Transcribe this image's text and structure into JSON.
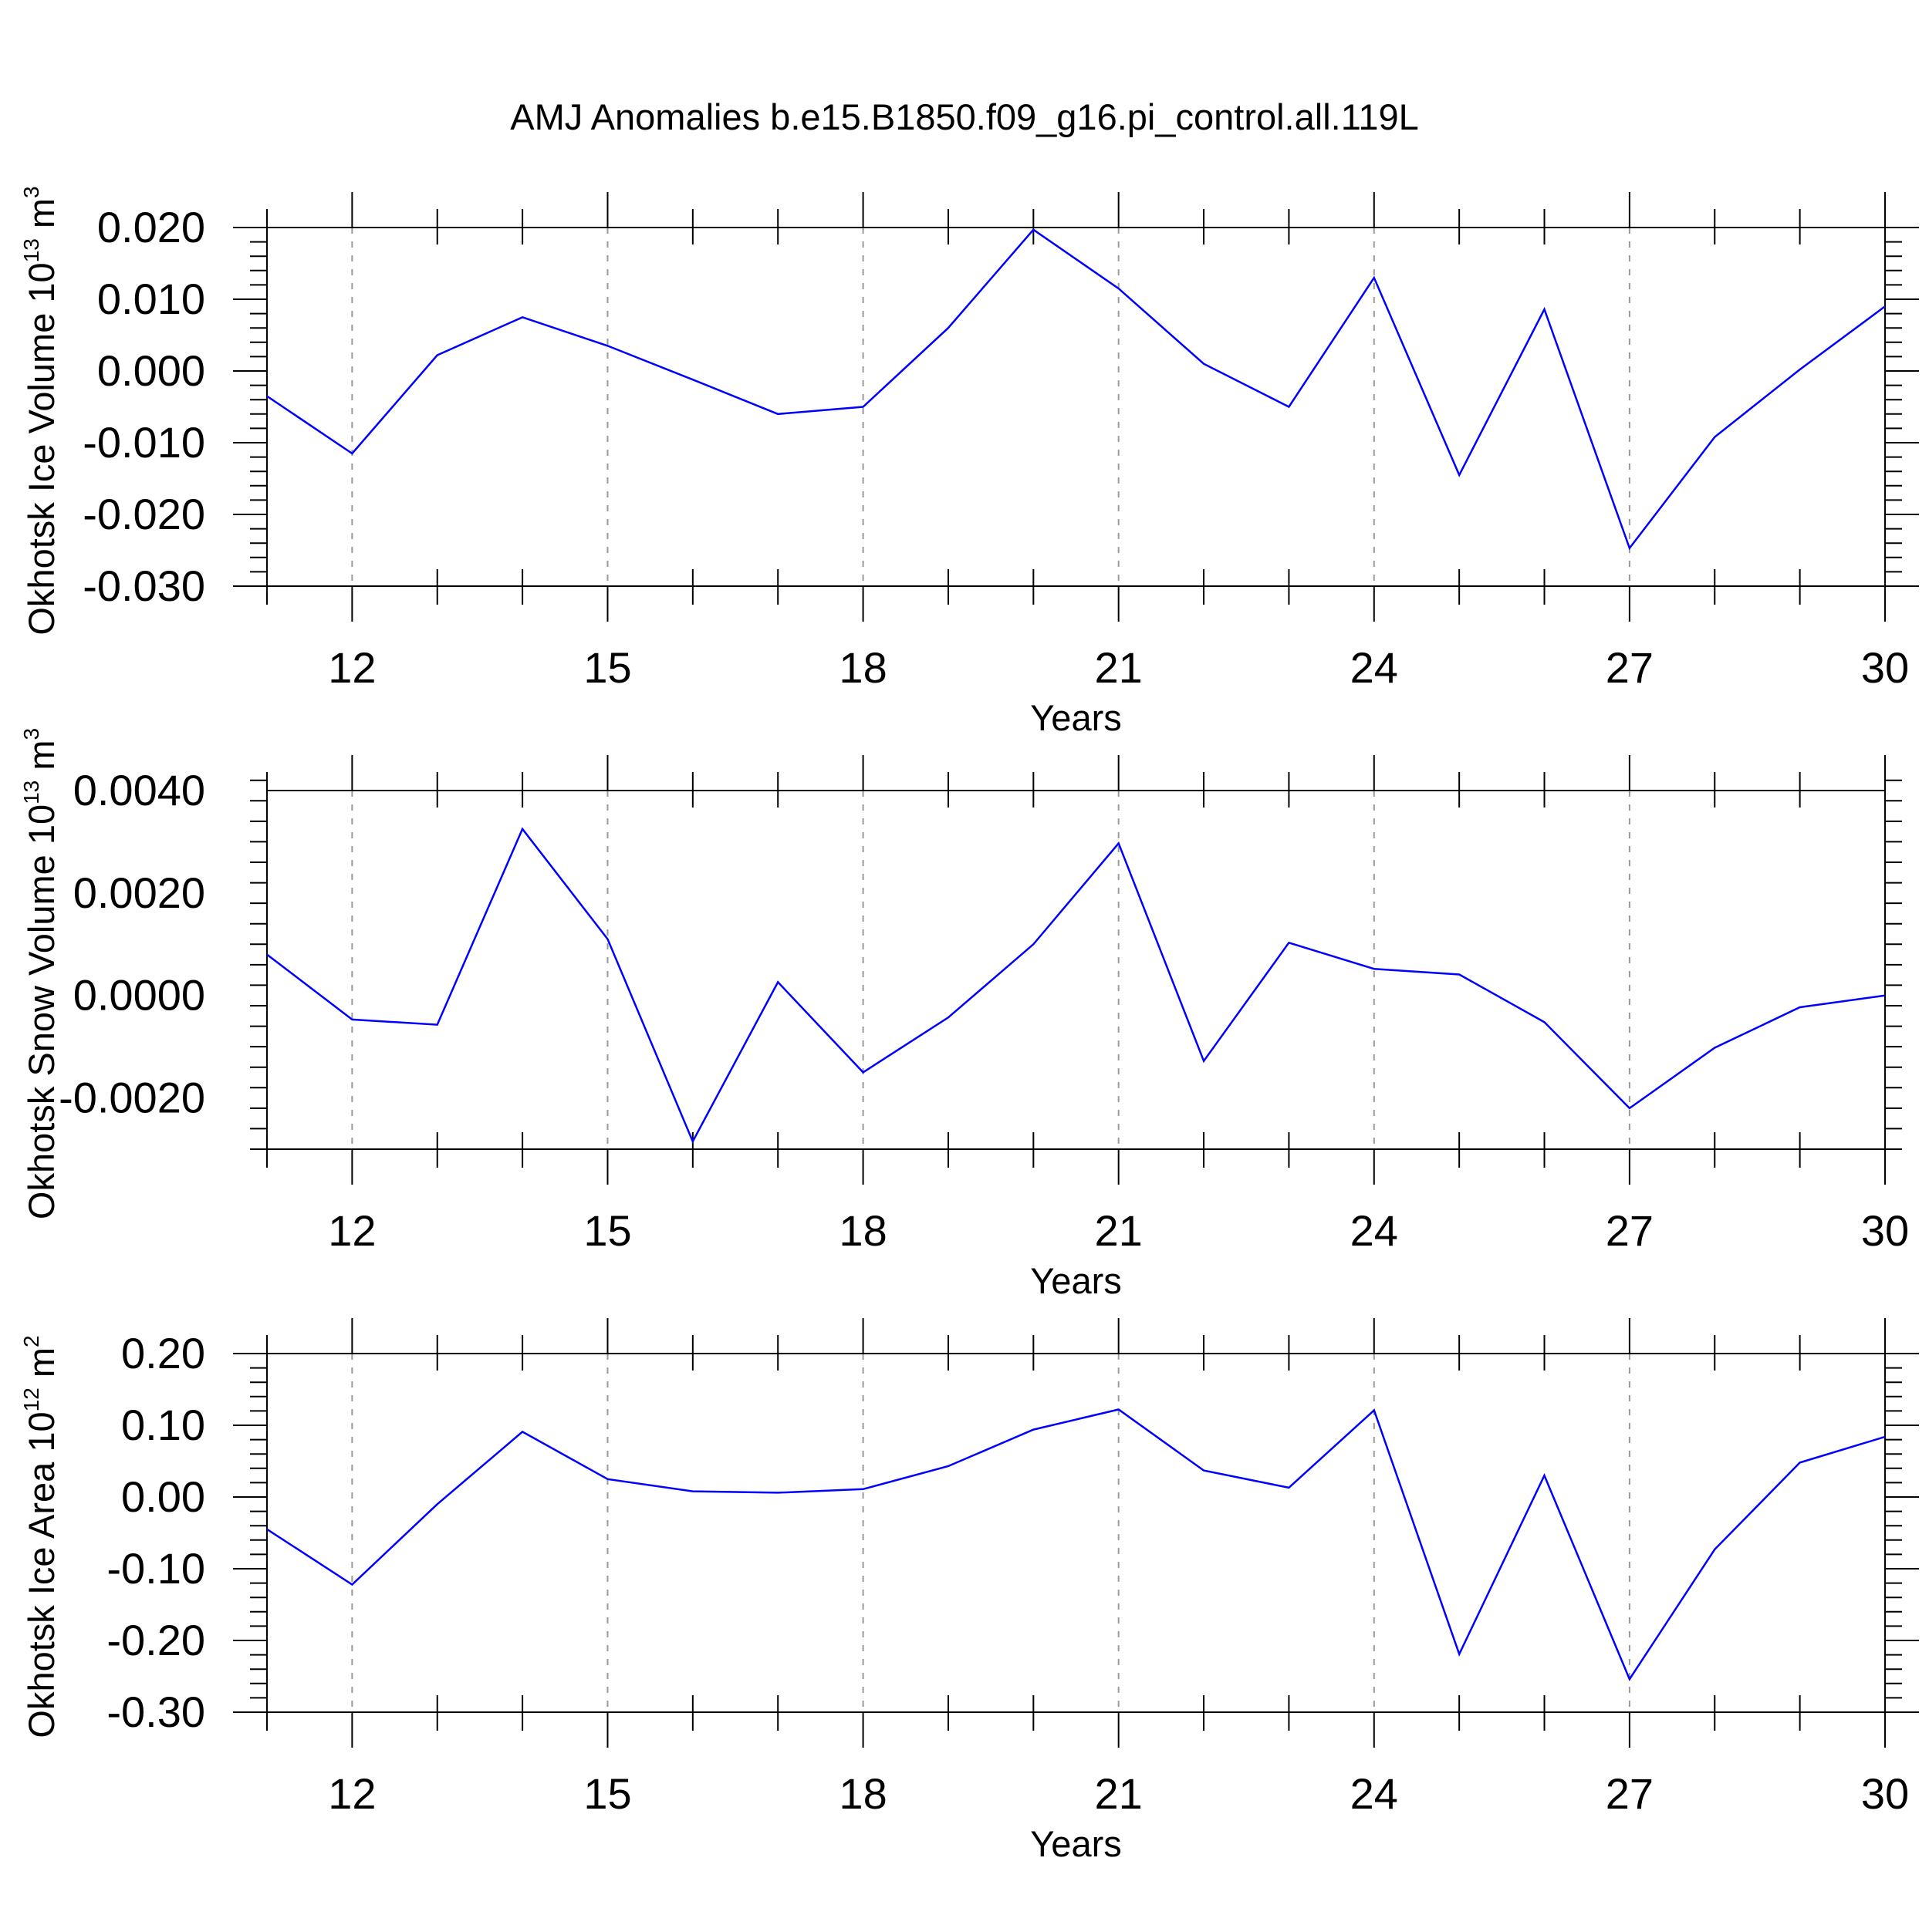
{
  "chart_data": {
    "type": "line",
    "title": "AMJ Anomalies b.e15.B1850.f09_g16.pi_control.all.119L",
    "line_color": "#0000ff",
    "grid": "vertical dashed at major x ticks",
    "x": [
      11,
      12,
      13,
      14,
      15,
      16,
      17,
      18,
      19,
      20,
      21,
      22,
      23,
      24,
      25,
      26,
      27,
      28,
      29,
      30
    ],
    "xlim": [
      11,
      30
    ],
    "x_ticks": [
      "12",
      "15",
      "18",
      "21",
      "24",
      "27",
      "30"
    ],
    "panels": [
      {
        "ylabel_main": "Okhotsk Ice Volume 10",
        "ylabel_exp": "13",
        "ylabel_unit": "m",
        "ylabel_unit_exp": "3",
        "xlabel": "Years",
        "ylim": [
          -0.03,
          0.02
        ],
        "y_ticks": [
          "0.020",
          "0.010",
          "0.000",
          "-0.010",
          "-0.020",
          "-0.030"
        ],
        "series": [
          {
            "values": [
              -0.0035,
              -0.0115,
              0.0022,
              0.0075,
              0.0035,
              -0.0012,
              -0.006,
              -0.005,
              0.006,
              0.0197,
              0.0115,
              0.001,
              -0.005,
              0.013,
              -0.0145,
              0.0086,
              -0.0247,
              -0.0092,
              0.0002,
              0.009
            ]
          }
        ]
      },
      {
        "ylabel_main": "Okhotsk Snow Volume 10",
        "ylabel_exp": "13",
        "ylabel_unit": "m",
        "ylabel_unit_exp": "3",
        "xlabel": "Years",
        "ylim": [
          -0.003,
          0.004
        ],
        "y_ticks": [
          "0.0040",
          "0.0020",
          "0.0000",
          "-0.0020"
        ],
        "series": [
          {
            "values": [
              0.0008,
              -0.00047,
              -0.00057,
              0.00325,
              0.0011,
              -0.00285,
              0.00026,
              -0.0015,
              -0.00043,
              0.001,
              0.00297,
              -0.00128,
              0.00103,
              0.00052,
              0.00041,
              -0.00052,
              -0.0022,
              -0.00102,
              -0.00023,
              0.0
            ]
          }
        ]
      },
      {
        "ylabel_main": "Okhotsk Ice Area 10",
        "ylabel_exp": "12",
        "ylabel_unit": "m",
        "ylabel_unit_exp": "2",
        "xlabel": "Years",
        "ylim": [
          -0.3,
          0.2
        ],
        "y_ticks": [
          "0.20",
          "0.10",
          "0.00",
          "-0.10",
          "-0.20",
          "-0.30"
        ],
        "series": [
          {
            "values": [
              -0.045,
              -0.122,
              -0.01,
              0.091,
              0.025,
              0.008,
              0.006,
              0.011,
              0.043,
              0.094,
              0.122,
              0.037,
              0.013,
              0.121,
              -0.219,
              0.03,
              -0.254,
              -0.073,
              0.048,
              0.084
            ]
          }
        ]
      }
    ]
  }
}
